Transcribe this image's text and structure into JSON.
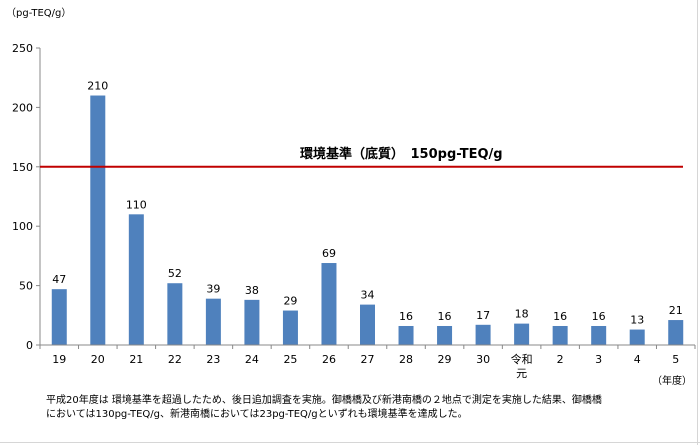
{
  "chart_data": {
    "type": "bar",
    "ylabel": "（pg-TEQ/g）",
    "xlabel": "（年度）",
    "ylim": [
      0,
      250
    ],
    "yticks": [
      0,
      50,
      100,
      150,
      200,
      250
    ],
    "grid": false,
    "bar_color": "#4f81bd",
    "categories": [
      "19",
      "20",
      "21",
      "22",
      "23",
      "24",
      "25",
      "26",
      "27",
      "28",
      "29",
      "30",
      "令和元",
      "2",
      "3",
      "4",
      "5"
    ],
    "values": [
      47,
      210,
      110,
      52,
      39,
      38,
      29,
      69,
      34,
      16,
      16,
      17,
      18,
      16,
      16,
      13,
      21
    ],
    "reference_line": {
      "value": 150,
      "label": "環境基準（底質）　150pg-TEQ/g",
      "color": "#c00000"
    }
  },
  "note": {
    "line1": "平成20年度は 環境基準を超過したため、後日追加調査を実施。御橋橋及び新港南橋の２地点で測定を実施した結果、御橋橋",
    "line2": "においては130pg-TEQ/g、新港南橋においては23pg-TEQ/gといずれも環境基準を達成した。"
  }
}
